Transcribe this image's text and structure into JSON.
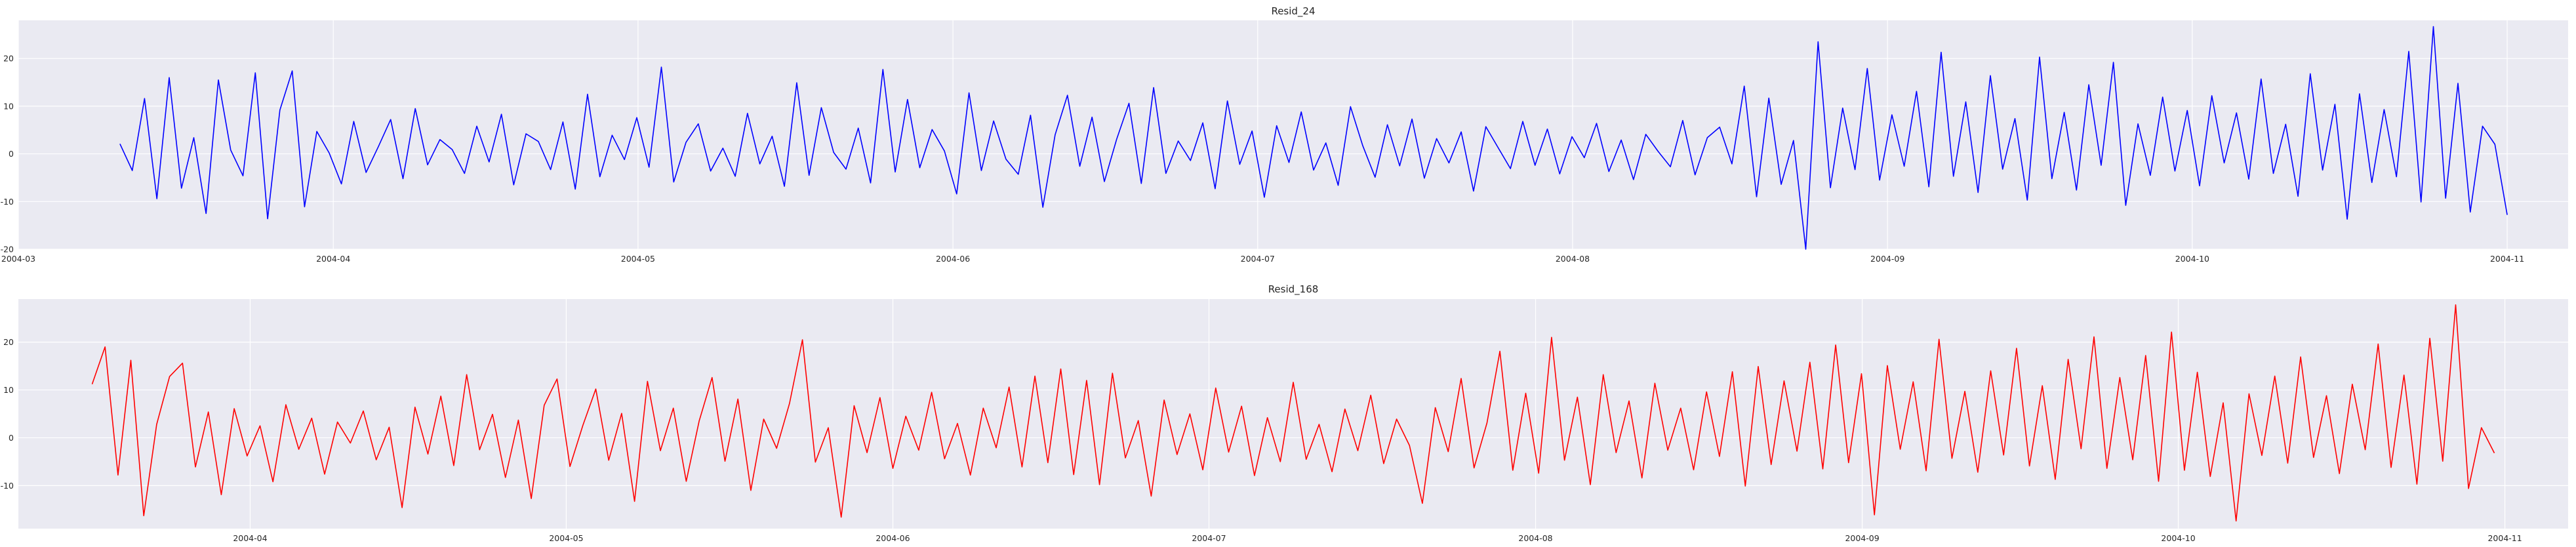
{
  "chart_data": [
    {
      "type": "line",
      "title": "Resid_24",
      "xlabel": "",
      "ylabel": "",
      "x_range": [
        "2004-03-01",
        "2004-11-07"
      ],
      "x_start": "2004-03-11",
      "x_end": "2004-11-01",
      "x_ticks": [
        "2004-03",
        "2004-04",
        "2004-05",
        "2004-06",
        "2004-07",
        "2004-08",
        "2004-09",
        "2004-10",
        "2004-11"
      ],
      "x_tick_dates": [
        "2004-03-01",
        "2004-04-01",
        "2004-05-01",
        "2004-06-01",
        "2004-07-01",
        "2004-08-01",
        "2004-09-01",
        "2004-10-01",
        "2004-11-01"
      ],
      "y_ticks": [
        -20,
        -10,
        0,
        10,
        20
      ],
      "ylim": [
        -20,
        28
      ],
      "grid": true,
      "color": "#0000ff",
      "series": [
        {
          "x_freq": "daily",
          "values": [
            2.1,
            -3.5,
            11.6,
            -9.4,
            16.0,
            -7.2,
            3.4,
            -12.5,
            15.5,
            0.8,
            -4.6,
            17.0,
            -13.6,
            9.2,
            17.4,
            -11.1,
            4.7,
            0.2,
            -6.3,
            6.8,
            -3.9,
            1.5,
            7.2,
            -5.2,
            9.5,
            -2.3,
            3.0,
            0.9,
            -4.1,
            5.8,
            -1.7,
            8.3,
            -6.5,
            4.2,
            2.6,
            -3.3,
            6.7,
            -7.4,
            12.5,
            -4.8,
            3.9,
            -1.2,
            7.6,
            -2.8,
            18.2,
            -5.9,
            2.4,
            6.3,
            -3.6,
            1.2,
            -4.7,
            8.5,
            -2.1,
            3.7,
            -6.8,
            14.9,
            -4.5,
            9.7,
            0.3,
            -3.2,
            5.4,
            -6.1,
            17.7,
            -3.8,
            11.4,
            -2.9,
            5.1,
            0.6,
            -8.4,
            12.8,
            -3.5,
            6.9,
            -1.1,
            -4.3,
            8.1,
            -11.2,
            4.0,
            12.3,
            -2.6,
            7.7,
            -5.8,
            3.1,
            10.6,
            -6.2,
            13.9,
            -4.1,
            2.7,
            -1.4,
            6.5,
            -7.3,
            11.1,
            -2.2,
            4.8,
            -9.1,
            5.9,
            -1.8,
            8.8,
            -3.4,
            2.3,
            -6.6,
            9.9,
            1.7,
            -4.9,
            6.1,
            -2.5,
            7.3,
            -5.1,
            3.2,
            -1.9,
            4.6,
            -7.8,
            5.7,
            1.3,
            -3.1,
            6.8,
            -2.4,
            5.2,
            -4.2,
            3.6,
            -0.8,
            6.4,
            -3.7,
            2.9,
            -5.4,
            4.1,
            0.5,
            -2.7,
            7.0,
            -4.4,
            3.4,
            5.6,
            -2.1,
            14.2,
            -9.0,
            11.7,
            -6.4,
            2.8,
            -20.0,
            23.5,
            -7.1,
            9.6,
            -3.3,
            17.9,
            -5.5,
            8.2,
            -2.6,
            13.1,
            -6.9,
            21.3,
            -4.7,
            10.9,
            -8.1,
            16.4,
            -3.2,
            7.4,
            -9.7,
            20.3,
            -5.2,
            8.7,
            -7.6,
            14.5,
            -2.4,
            19.2,
            -10.8,
            6.3,
            -4.5,
            11.9,
            -3.6,
            9.1,
            -6.7,
            12.2,
            -1.9,
            8.6,
            -5.3,
            15.7,
            -4.1,
            6.2,
            -8.9,
            16.8,
            -3.4,
            10.4,
            -13.7,
            12.6,
            -6.0,
            9.3,
            -4.8,
            21.5,
            -10.1,
            26.7,
            -9.3,
            14.8,
            -12.2,
            5.8,
            2.0,
            -12.8
          ]
        }
      ]
    },
    {
      "type": "line",
      "title": "Resid_168",
      "xlabel": "",
      "ylabel": "",
      "x_range": [
        "2004-03-10",
        "2004-11-07"
      ],
      "x_start": "2004-03-17",
      "x_end": "2004-10-31",
      "x_ticks": [
        "2004-04",
        "2004-05",
        "2004-06",
        "2004-07",
        "2004-08",
        "2004-09",
        "2004-10",
        "2004-11"
      ],
      "x_tick_dates": [
        "2004-04-01",
        "2004-05-01",
        "2004-06-01",
        "2004-07-01",
        "2004-08-01",
        "2004-09-01",
        "2004-10-01",
        "2004-11-01"
      ],
      "y_ticks": [
        -10,
        0,
        10,
        20
      ],
      "ylim": [
        -19,
        29
      ],
      "grid": true,
      "color": "#ff0000",
      "series": [
        {
          "x_freq": "daily",
          "values": [
            11.2,
            19.0,
            -7.8,
            16.2,
            -16.3,
            2.8,
            12.8,
            15.6,
            -6.1,
            5.4,
            -11.9,
            6.1,
            -3.8,
            2.5,
            -9.2,
            6.9,
            -2.4,
            4.1,
            -7.6,
            3.3,
            -1.1,
            5.6,
            -4.6,
            2.2,
            -14.6,
            6.4,
            -3.4,
            8.7,
            -5.8,
            13.2,
            -2.5,
            4.9,
            -8.3,
            3.7,
            -12.7,
            6.8,
            12.3,
            -6.0,
            2.6,
            10.2,
            -4.7,
            5.1,
            -13.3,
            11.8,
            -2.7,
            6.2,
            -9.1,
            3.5,
            12.6,
            -4.9,
            8.1,
            -11.0,
            3.9,
            -2.2,
            7.2,
            20.5,
            -5.1,
            2.1,
            -16.6,
            6.7,
            -3.1,
            8.4,
            -6.4,
            4.5,
            -2.6,
            9.5,
            -4.4,
            3.0,
            -7.8,
            6.2,
            -2.1,
            10.6,
            -6.1,
            12.9,
            -5.2,
            14.4,
            -7.7,
            12.0,
            -9.8,
            13.5,
            -4.2,
            3.6,
            -12.2,
            7.9,
            -3.5,
            5.0,
            -6.7,
            10.4,
            -3.0,
            6.6,
            -7.9,
            4.2,
            -5.0,
            11.6,
            -4.5,
            2.8,
            -7.1,
            6.0,
            -2.7,
            8.9,
            -5.4,
            3.9,
            -1.6,
            -13.7,
            6.3,
            -2.9,
            12.4,
            -6.3,
            3.1,
            18.1,
            -6.8,
            9.3,
            -7.4,
            21.0,
            -4.7,
            8.5,
            -9.8,
            13.2,
            -3.1,
            7.7,
            -8.4,
            11.4,
            -2.6,
            6.2,
            -6.7,
            9.6,
            -3.9,
            13.8,
            -10.1,
            14.9,
            -5.6,
            11.9,
            -2.8,
            15.8,
            -6.5,
            19.4,
            -5.2,
            13.4,
            -16.1,
            15.1,
            -2.4,
            11.7,
            -6.9,
            20.6,
            -4.3,
            9.7,
            -7.2,
            14.0,
            -3.6,
            18.7,
            -5.9,
            10.9,
            -8.7,
            16.4,
            -2.3,
            21.1,
            -6.4,
            12.6,
            -4.6,
            17.2,
            -9.1,
            22.1,
            -6.8,
            13.7,
            -8.1,
            7.3,
            -17.4,
            9.2,
            -3.7,
            12.9,
            -5.3,
            16.9,
            -4.1,
            8.8,
            -7.5,
            11.2,
            -2.5,
            19.6,
            -6.2,
            13.1,
            -9.7,
            20.8,
            -4.9,
            27.8,
            -10.6,
            2.1,
            -3.2
          ]
        }
      ]
    }
  ]
}
